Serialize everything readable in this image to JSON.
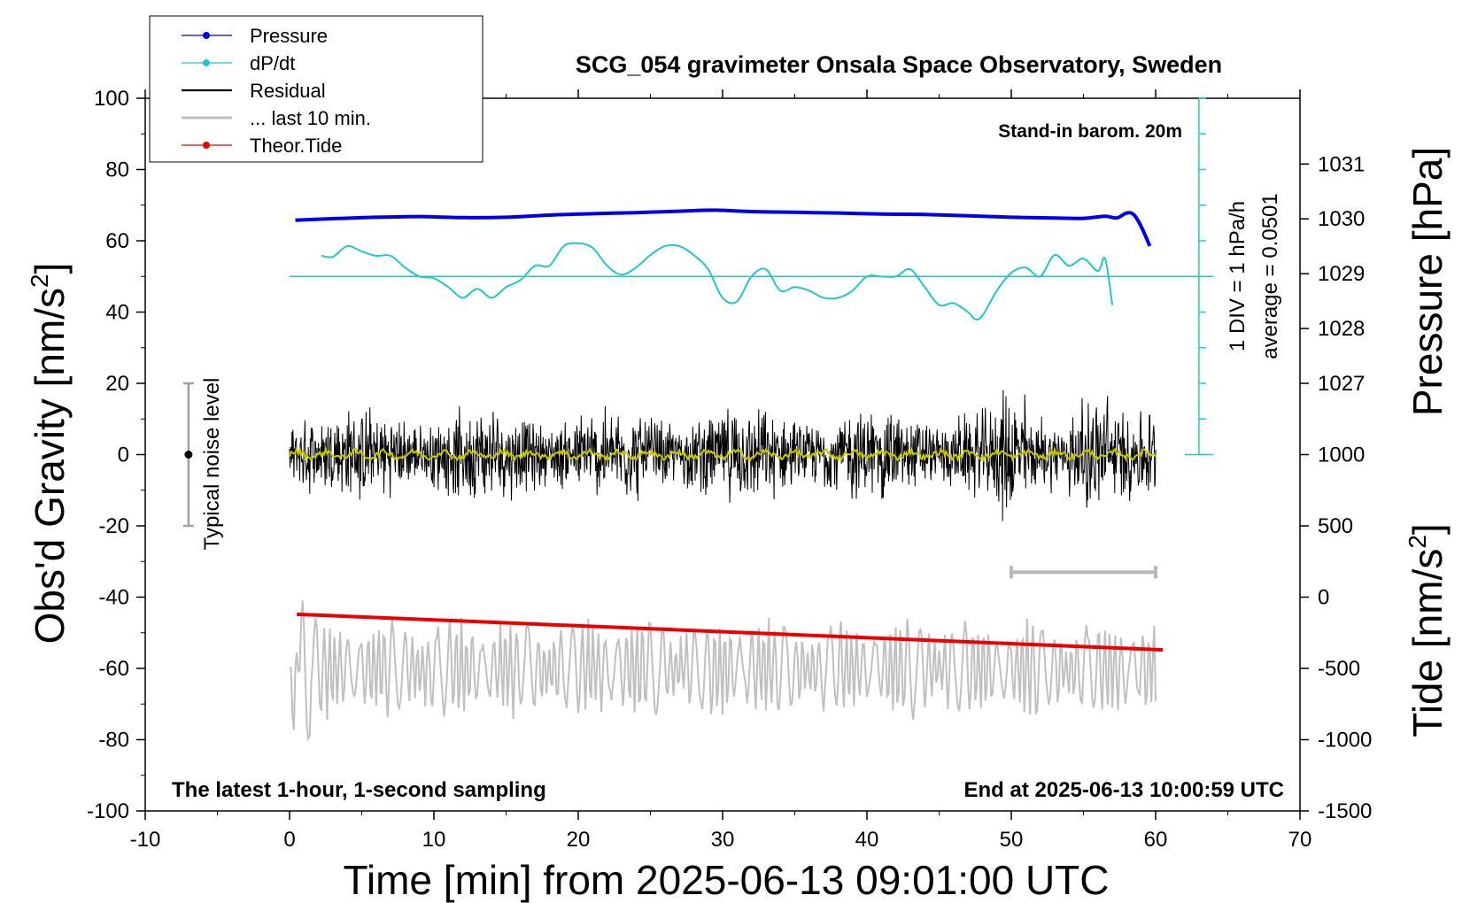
{
  "chart_data": {
    "type": "line",
    "title": "SCG_054 gravimeter Onsala Space Observatory, Sweden",
    "xlabel": "Time [min] from 2025-06-13 09:01:00 UTC",
    "ylabel_main": "Obs'd Gravity [nm/s",
    "ylabel_main_sup": "2",
    "ylabel_main_close": "]",
    "ylabel_pressure": "Pressure [hPa]",
    "ylabel_tide": "Tide [nm/s",
    "ylabel_tide_sup": "2",
    "ylabel_tide_close": "]",
    "xlim": [
      -10,
      70
    ],
    "ylim": [
      -100,
      100
    ],
    "x_ticks": [
      "-10",
      "0",
      "10",
      "20",
      "30",
      "40",
      "50",
      "60",
      "70"
    ],
    "y_ticks": [
      "100",
      "80",
      "60",
      "40",
      "20",
      "0",
      "-20",
      "-40",
      "-60",
      "-80",
      "-100"
    ],
    "pressure_ticks": [
      "1031",
      "1030",
      "1029",
      "1028",
      "1027"
    ],
    "pressure_tick_values": [
      1031,
      1030,
      1029,
      1028,
      1027
    ],
    "tide_ticks": [
      "1000",
      "500",
      "0",
      "-500",
      "-1000",
      "-1500"
    ],
    "tide_tick_values": [
      1000,
      500,
      0,
      -500,
      -1000,
      -1500
    ],
    "pressure_scale": {
      "value_at_gravity_60": 1029.6,
      "value_at_gravity_80": 1030.9
    },
    "tide_scale": {
      "value_at_gravity_m100": -1500,
      "value_at_gravity_m40": 0
    },
    "annotations": {
      "stand_in": "Stand-in barom. 20m",
      "latest": "The latest 1-hour, 1-second sampling",
      "end_at": "End at 2025-06-13 10:00:59 UTC",
      "div_label": "1 DIV = 1 hPa/h",
      "average_label": "average = 0.0501",
      "noise_label": "Typical noise level"
    },
    "legend": {
      "placement": "top-left",
      "entries": [
        {
          "label": "Pressure",
          "color": "#0000ee",
          "style": "line-dot"
        },
        {
          "label": "dP/dt",
          "color": "#20c8c8",
          "style": "line-dot"
        },
        {
          "label": "Residual",
          "color": "#000000",
          "style": "line"
        },
        {
          "label": "... last 10 min.",
          "color": "#c0c0c0",
          "style": "line"
        },
        {
          "label": "Theor.Tide",
          "color": "#ee0000",
          "style": "line-dot"
        }
      ]
    },
    "colors": {
      "pressure": "#0000ee",
      "dpdt": "#20c8c8",
      "residual": "#000000",
      "residual_smooth": "#c8c800",
      "last10": "#c0c0c0",
      "tide": "#ee0000",
      "noise": "#a0a0a0"
    },
    "noise_level": {
      "x": -7,
      "center": 0,
      "low": -20,
      "high": 20
    },
    "last10_bar": {
      "x_start": 50,
      "x_end": 60,
      "y": -33
    },
    "div_axis": {
      "x": 63,
      "y_top": 100,
      "y_bottom": 0,
      "baseline_y": 50,
      "divisions": 10
    },
    "series": [
      {
        "name": "Pressure",
        "units": "gravity-axis",
        "points": [
          [
            0.4,
            65.8
          ],
          [
            3,
            66.2
          ],
          [
            6,
            66.6
          ],
          [
            9,
            66.8
          ],
          [
            12,
            66.5
          ],
          [
            15,
            66.6
          ],
          [
            18,
            67.2
          ],
          [
            21,
            67.6
          ],
          [
            24,
            67.9
          ],
          [
            27,
            68.3
          ],
          [
            29.5,
            68.6
          ],
          [
            32,
            68.2
          ],
          [
            35,
            68.0
          ],
          [
            38,
            67.8
          ],
          [
            41,
            67.5
          ],
          [
            44,
            67.4
          ],
          [
            47,
            67.0
          ],
          [
            50,
            66.6
          ],
          [
            53,
            66.4
          ],
          [
            55,
            66.3
          ],
          [
            56.5,
            66.9
          ],
          [
            57.3,
            66.4
          ],
          [
            58,
            67.8
          ],
          [
            58.5,
            67.3
          ],
          [
            59,
            64.0
          ],
          [
            59.6,
            58.5
          ]
        ]
      },
      {
        "name": "dP/dt",
        "units": "gravity-axis",
        "points": [
          [
            2.2,
            55.8
          ],
          [
            3,
            55.5
          ],
          [
            4,
            58.5
          ],
          [
            5,
            57
          ],
          [
            6,
            55.8
          ],
          [
            7,
            55.8
          ],
          [
            8,
            52.5
          ],
          [
            9,
            50
          ],
          [
            10,
            49.5
          ],
          [
            11,
            47
          ],
          [
            12,
            44
          ],
          [
            13,
            46.5
          ],
          [
            14,
            44
          ],
          [
            15,
            47
          ],
          [
            16,
            49
          ],
          [
            17,
            53
          ],
          [
            18,
            53
          ],
          [
            19,
            58.5
          ],
          [
            20,
            59.3
          ],
          [
            21,
            58
          ],
          [
            22,
            53
          ],
          [
            23,
            50.5
          ],
          [
            24,
            52.5
          ],
          [
            25,
            56
          ],
          [
            26,
            58.5
          ],
          [
            27,
            58.5
          ],
          [
            28,
            56
          ],
          [
            29,
            52
          ],
          [
            30,
            44
          ],
          [
            31,
            43
          ],
          [
            32,
            50
          ],
          [
            33,
            52
          ],
          [
            34,
            46
          ],
          [
            35,
            47
          ],
          [
            36,
            46
          ],
          [
            37,
            44
          ],
          [
            38,
            44
          ],
          [
            39,
            46
          ],
          [
            40,
            50
          ],
          [
            41,
            50
          ],
          [
            42,
            50
          ],
          [
            43,
            52
          ],
          [
            44,
            47
          ],
          [
            45,
            42
          ],
          [
            46,
            42.5
          ],
          [
            47,
            40
          ],
          [
            47.5,
            38
          ],
          [
            48,
            39
          ],
          [
            49,
            46
          ],
          [
            50,
            51
          ],
          [
            51,
            52.5
          ],
          [
            52,
            50
          ],
          [
            53,
            56
          ],
          [
            54,
            53
          ],
          [
            55,
            55
          ],
          [
            56,
            51.5
          ],
          [
            56.5,
            55
          ],
          [
            57,
            42
          ]
        ]
      },
      {
        "name": "Theor.Tide",
        "units": "gravity-axis",
        "points": [
          [
            0.5,
            -44.8
          ],
          [
            60.5,
            -54.8
          ]
        ]
      }
    ],
    "baseline": {
      "y": 50,
      "x_start": 0,
      "x_end": 64
    }
  }
}
